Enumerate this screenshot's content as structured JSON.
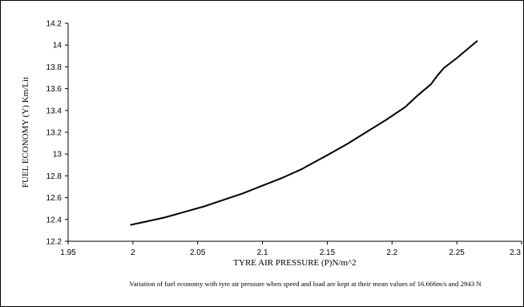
{
  "caption": "Variation of fuel economy with tyre air pressure when speed and load are kept at their mean values of 16.666m/s and 2943 N",
  "chart_data": {
    "type": "line",
    "xlabel": "TYRE AIR PRESSURE (P)N/m^2",
    "ylabel": "FUEL ECONOMY (Y) Km/Lit",
    "xlim": [
      1.95,
      2.3
    ],
    "ylim": [
      12.2,
      14.2
    ],
    "xticks": [
      "1.95",
      "2",
      "2.05",
      "2.1",
      "2.15",
      "2.2",
      "2.25",
      "2.3"
    ],
    "yticks": [
      "12.2",
      "12.4",
      "12.6",
      "12.8",
      "13",
      "13.2",
      "13.4",
      "13.6",
      "13.8",
      "14",
      "14.2"
    ],
    "grid": false,
    "legend": "none",
    "line_color": "#000000",
    "series": [
      {
        "x": [
          1.998,
          2.01,
          2.025,
          2.04,
          2.055,
          2.07,
          2.085,
          2.1,
          2.115,
          2.13,
          2.15,
          2.165,
          2.18,
          2.195,
          2.21,
          2.22,
          2.23,
          2.235,
          2.24,
          2.25,
          2.26,
          2.266
        ],
        "y": [
          12.35,
          12.38,
          12.42,
          12.47,
          12.52,
          12.58,
          12.64,
          12.71,
          12.78,
          12.86,
          12.99,
          13.09,
          13.2,
          13.31,
          13.43,
          13.54,
          13.64,
          13.72,
          13.79,
          13.88,
          13.98,
          14.04
        ]
      }
    ]
  }
}
